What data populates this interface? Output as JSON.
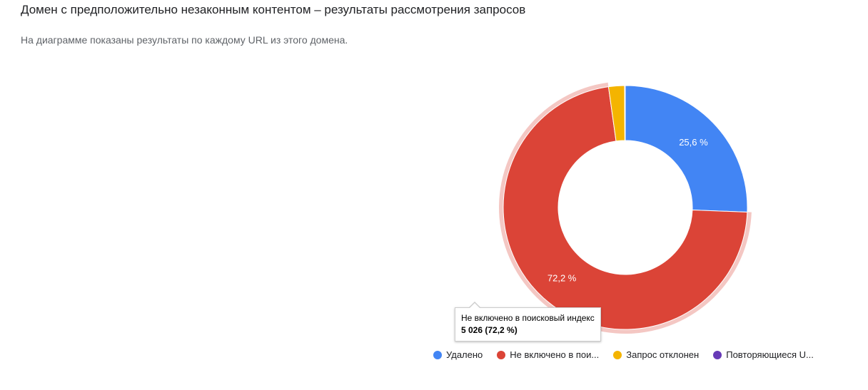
{
  "header": {
    "title": "Домен с предположительно незаконным контентом – результаты рассмотрения запросов",
    "subtitle": "На диаграмме показаны результаты по каждому URL из этого домена."
  },
  "chart_data": {
    "type": "pie",
    "donut": true,
    "legend_position": "bottom",
    "series": [
      {
        "name": "Удалено",
        "legend_label": "Удалено",
        "percent": 25.6,
        "label": "25,6 %",
        "color": "#4285f4"
      },
      {
        "name": "Не включено в поисковый индекс",
        "legend_label": "Не включено в пои...",
        "percent": 72.2,
        "label": "72,2 %",
        "color": "#db4437",
        "highlighted": true
      },
      {
        "name": "Запрос отклонен",
        "legend_label": "Запрос отклонен",
        "percent": 2.1,
        "label": "",
        "color": "#f4b400"
      },
      {
        "name": "Повторяющиеся URL",
        "legend_label": "Повторяющиеся U...",
        "percent": 0.1,
        "label": "",
        "color": "#673ab7"
      }
    ],
    "tooltip": {
      "series": "Не включено в поисковый индекс",
      "value": "5 026 (72,2 %)"
    }
  }
}
